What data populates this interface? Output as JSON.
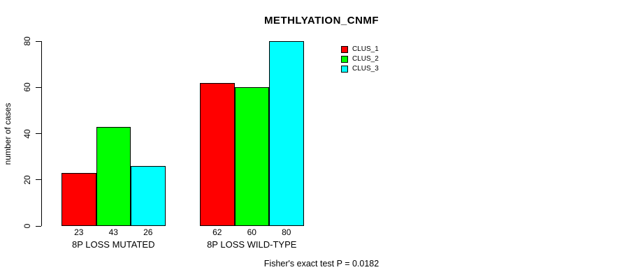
{
  "chart_data": {
    "type": "bar",
    "title": "METHLYATION_CNMF",
    "ylabel": "number of cases",
    "xlabel": "",
    "categories": [
      "8P LOSS MUTATED",
      "8P LOSS WILD-TYPE"
    ],
    "series": [
      {
        "name": "CLUS_1",
        "color": "#ff0000",
        "values": [
          23,
          62
        ]
      },
      {
        "name": "CLUS_2",
        "color": "#00ff00",
        "values": [
          43,
          60
        ]
      },
      {
        "name": "CLUS_3",
        "color": "#00ffff",
        "values": [
          26,
          80
        ]
      }
    ],
    "ylim": [
      0,
      80
    ],
    "yticks": [
      0,
      20,
      40,
      60,
      80
    ],
    "grid": false,
    "show_value_labels": true,
    "legend_position": "top-right",
    "annotation": "Fisher's exact test P = 0.0182",
    "background_color": "#ffffff",
    "text_color": "#000000"
  }
}
